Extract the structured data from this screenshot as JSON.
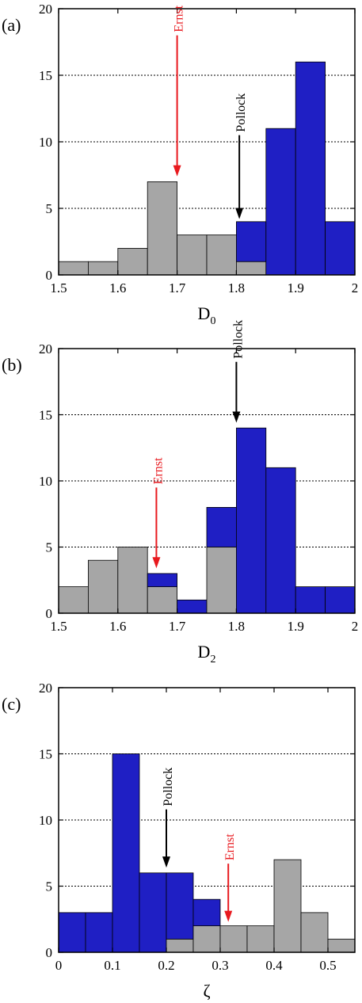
{
  "chart_data": [
    {
      "type": "bar",
      "stacked": true,
      "panel_label": "(a)",
      "xlabel": "D",
      "xlabel_sub": "0",
      "xlim": [
        1.5,
        2.0
      ],
      "ylim": [
        0,
        20
      ],
      "xticks": [
        "1.5",
        "1.6",
        "1.7",
        "1.8",
        "1.9",
        "2"
      ],
      "yticks": [
        "0",
        "5",
        "10",
        "15",
        "20"
      ],
      "bin_width": 0.05,
      "bin_starts": [
        1.5,
        1.55,
        1.6,
        1.65,
        1.7,
        1.75,
        1.8,
        1.85,
        1.9,
        1.95
      ],
      "series": [
        {
          "color": "#a6a6a6",
          "values": [
            1,
            1,
            2,
            7,
            3,
            3,
            1,
            0,
            0,
            0
          ]
        },
        {
          "color": "#1f1fc4",
          "values": [
            0,
            0,
            0,
            0,
            0,
            0,
            3,
            11,
            16,
            4
          ]
        }
      ],
      "grid": "horizontal-dotted",
      "annotations": [
        {
          "text": "Ernst",
          "x": 1.7,
          "color": "#e8191e",
          "y_from": 18,
          "y_to": 7.4
        },
        {
          "text": "Pollock",
          "x": 1.805,
          "color": "#000000",
          "y_from": 10.5,
          "y_to": 4.2
        }
      ]
    },
    {
      "type": "bar",
      "stacked": true,
      "panel_label": "(b)",
      "xlabel": "D",
      "xlabel_sub": "2",
      "xlim": [
        1.5,
        2.0
      ],
      "ylim": [
        0,
        20
      ],
      "xticks": [
        "1.5",
        "1.6",
        "1.7",
        "1.8",
        "1.9",
        "2"
      ],
      "yticks": [
        "0",
        "5",
        "10",
        "15",
        "20"
      ],
      "bin_width": 0.05,
      "bin_starts": [
        1.5,
        1.55,
        1.6,
        1.65,
        1.7,
        1.75,
        1.8,
        1.85,
        1.9,
        1.95
      ],
      "series": [
        {
          "color": "#a6a6a6",
          "values": [
            2,
            4,
            5,
            2,
            0,
            5,
            0,
            0,
            0,
            0
          ]
        },
        {
          "color": "#1f1fc4",
          "values": [
            0,
            0,
            0,
            1,
            1,
            3,
            14,
            11,
            2,
            2
          ]
        }
      ],
      "grid": "horizontal-dotted",
      "annotations": [
        {
          "text": "Ernst",
          "x": 1.665,
          "color": "#e8191e",
          "y_from": 9.5,
          "y_to": 3.4
        },
        {
          "text": "Pollock",
          "x": 1.8,
          "color": "#000000",
          "y_from": 19,
          "y_to": 14.4
        }
      ]
    },
    {
      "type": "bar",
      "stacked": true,
      "panel_label": "(c)",
      "xlabel": "ζ",
      "xlabel_sub": "",
      "xlim": [
        0,
        0.55
      ],
      "ylim": [
        0,
        20
      ],
      "xticks": [
        "0",
        "0.1",
        "0.2",
        "0.3",
        "0.4",
        "0.5"
      ],
      "yticks": [
        "0",
        "5",
        "10",
        "15",
        "20"
      ],
      "bin_width": 0.05,
      "bin_starts": [
        0,
        0.05,
        0.1,
        0.15,
        0.2,
        0.25,
        0.3,
        0.35,
        0.4,
        0.45,
        0.5
      ],
      "series": [
        {
          "color": "#a6a6a6",
          "values": [
            0,
            0,
            0,
            0,
            1,
            2,
            2,
            2,
            7,
            3,
            1
          ]
        },
        {
          "color": "#1f1fc4",
          "values": [
            3,
            3,
            15,
            6,
            5,
            2,
            0,
            0,
            0,
            0,
            0
          ]
        }
      ],
      "grid": "horizontal-dotted",
      "annotations": [
        {
          "text": "Pollock",
          "x": 0.2,
          "color": "#000000",
          "y_from": 10.8,
          "y_to": 6.4
        },
        {
          "text": "Ernst",
          "x": 0.315,
          "color": "#e8191e",
          "y_from": 6.7,
          "y_to": 2.3
        }
      ]
    }
  ]
}
